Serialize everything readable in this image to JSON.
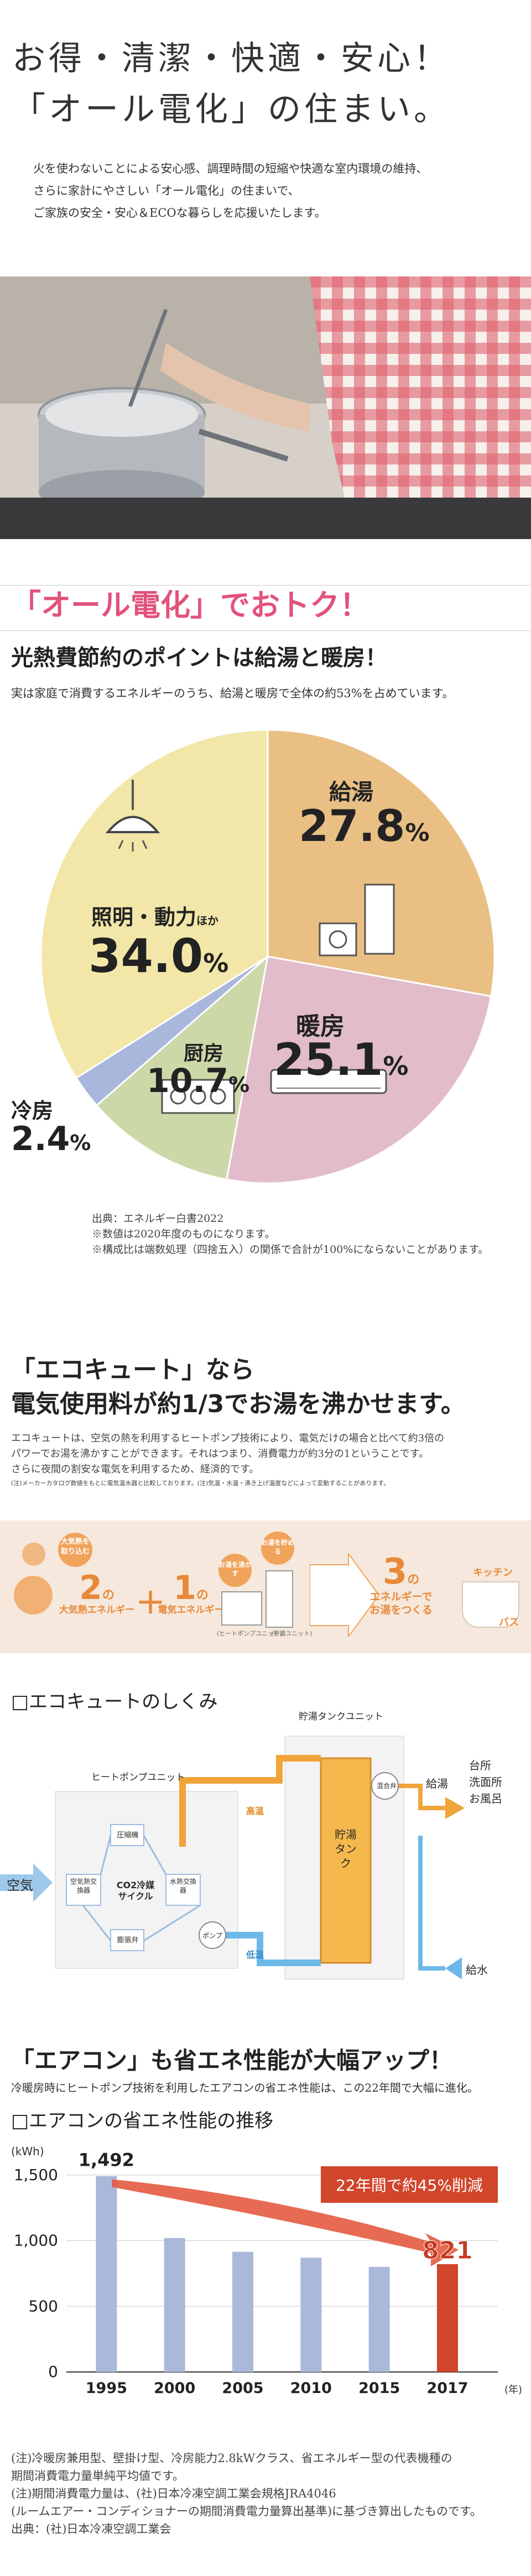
{
  "hero": {
    "title_line1": "お得・清潔・快適・安心！",
    "title_line2": "「オール電化」の住まい。",
    "intro_line1": "火を使わないことによる安心感、調理時間の短縮や快適な室内環境の維持、",
    "intro_line2": "さらに家計にやさしい「オール電化」の住まいで、",
    "intro_line3": "ご家族の安全・安心＆ECOな暮らしを応援いたします。"
  },
  "savings": {
    "heading": "「オール電化」でおトク！",
    "subheading": "光熱費節約のポイントは給湯と暖房！",
    "lead": "実は家庭で消費するエネルギーのうち、給湯と暖房で全体の約53%を占めています。",
    "source_1": "出典：エネルギー白書2022",
    "source_2": "※数値は2020年度のものになります。",
    "source_3": "※構成比は端数処理（四捨五入）の関係で合計が100%にならないことがあります。"
  },
  "chart_data": [
    {
      "type": "pie",
      "title": "",
      "slices": [
        {
          "label": "給湯",
          "value": 27.8,
          "color": "#e9bf84"
        },
        {
          "label": "暖房",
          "value": 25.1,
          "color": "#e2bccb"
        },
        {
          "label": "厨房",
          "value": 10.7,
          "color": "#cdd8a8"
        },
        {
          "label": "冷房",
          "value": 2.4,
          "color": "#a9b7dc"
        },
        {
          "label": "照明・動力ほか",
          "value": 34.0,
          "color": "#f2e7a8"
        }
      ]
    },
    {
      "type": "bar",
      "title": "□エアコンの省エネ性能の推移",
      "ylabel": "(kWh)",
      "xlabel": "(年)",
      "ylim": [
        0,
        1600
      ],
      "yticks": [
        "0",
        "500",
        "1,000",
        "1,500"
      ],
      "categories": [
        "1995",
        "2000",
        "2005",
        "2010",
        "2015",
        "2017"
      ],
      "values": [
        1492,
        1020,
        915,
        870,
        800,
        821
      ],
      "highlight_labels": {
        "first": "1,492",
        "last": "821"
      },
      "callout": "22年間で約45%削減",
      "bar_color": "#aab8da",
      "highlight_color": "#d1452b"
    }
  ],
  "pie_labels": {
    "kyuto_name": "給湯",
    "kyuto_val": "27.8",
    "kyuto_unit": "%",
    "danbo_name": "暖房",
    "danbo_val": "25.1",
    "danbo_unit": "%",
    "chubo_name": "厨房",
    "chubo_val": "10.7",
    "chubo_unit": "%",
    "reibo_name": "冷房",
    "reibo_val": "2.4",
    "reibo_unit": "%",
    "shomei_name": "照明・動力",
    "shomei_small": "ほか",
    "shomei_val": "34.0",
    "shomei_unit": "%"
  },
  "ecocute": {
    "heading1": "「エコキュート」なら",
    "heading2": "電気使用料が約1/3でお湯を沸かせます。",
    "body1": "エコキュートは、空気の熱を利用するヒートポンプ技術により、電気だけの場合と比べて約3倍の",
    "body2": "パワーでお湯を沸かすことができます。それはつまり、消費電力が約3分の1ということです。",
    "body3": "さらに夜間の割安な電気を利用するため、経済的です。",
    "note": "(注)メーカーカタログ数値をもとに電気温水器と比較しております。(注)気温・水温・沸き上げ温度などによって変動することがあります。",
    "c1_top": "大気熱を取り込む",
    "c1_num": "2",
    "c1_no": "の",
    "c1_text": "大気熱エネルギー",
    "plus": "＋",
    "c2_num": "1",
    "c2_no": "の",
    "c2_text": "電気エネルギー",
    "c2_top": "お湯を沸かす",
    "heatpump_tag": "(ヒートポンプユニット)",
    "tank_tag": "(貯湯ユニット)",
    "c3_top": "お湯を貯める",
    "c3_num": "3",
    "c3_no": "の",
    "c3_text1": "エネルギーで",
    "c3_text2": "お湯をつくる",
    "kitchen": "キッチン",
    "bath": "バス"
  },
  "mechanism": {
    "heading": "□エコキュートのしくみ",
    "tank_unit": "貯湯タンクユニット",
    "hp_unit": "ヒートポンプユニット",
    "tank": "貯湯タンク",
    "mix_valve": "混合弁",
    "supply_hot": "給湯",
    "dest1": "台所",
    "dest2": "洗面所",
    "dest3": "お風呂",
    "air": "空気",
    "compressor": "圧縮機",
    "air_hx": "空気熱交換器",
    "co2": "CO2冷媒サイクル",
    "water_hx": "水熱交換器",
    "expansion": "膨張弁",
    "pump": "ポンプ",
    "high_temp": "高温",
    "low_temp": "低温",
    "water_in": "給水"
  },
  "aircon": {
    "heading": "「エアコン」も省エネ性能が大幅アップ！",
    "lead": "冷暖房時にヒートポンプ技術を利用したエアコンの省エネ性能は、この22年間で大幅に進化。",
    "note1": "(注)冷暖房兼用型、壁掛け型、冷房能力2.8kWクラス、省エネルギー型の代表機種の",
    "note2": "期間消費電力量単純平均値です。",
    "note3": "(注)期間消費電力量は、(社)日本冷凍空調工業会規格JRA4046",
    "note4": "(ルームエアー・コンディショナーの期間消費電力量算出基準)に基づき算出したものです。",
    "note5": "出典：(社)日本冷凍空調工業会"
  }
}
